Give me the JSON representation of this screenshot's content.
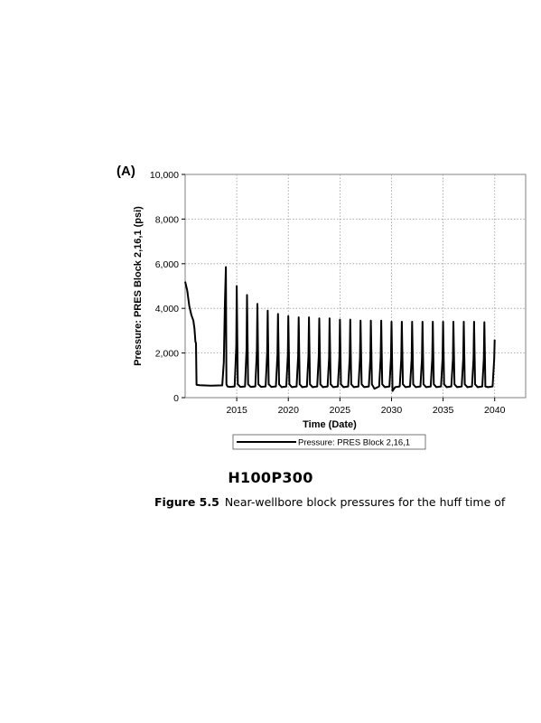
{
  "panel_label": "(A)",
  "subtitle": "H100P300",
  "caption": {
    "label": "Figure 5.5",
    "text": "Near-wellbore block pressures for the huff time of"
  },
  "chart_data": {
    "type": "line",
    "title": "",
    "xlabel": "Time (Date)",
    "ylabel": "Pressure: PRES Block 2,16,1 (psi)",
    "xlim": [
      2010.0,
      2043.0
    ],
    "ylim": [
      0,
      10000
    ],
    "x_ticks": [
      2015,
      2020,
      2025,
      2030,
      2035,
      2040
    ],
    "x_tick_labels": [
      "2015",
      "2020",
      "2025",
      "2030",
      "2035",
      "2040"
    ],
    "y_ticks": [
      0,
      2000,
      4000,
      6000,
      8000,
      10000
    ],
    "y_tick_labels": [
      "0",
      "2,000",
      "4,000",
      "6,000",
      "8,000",
      "10,000"
    ],
    "grid": true,
    "legend_position": "bottom",
    "series": [
      {
        "name": "Pressure: PRES Block 2,16,1",
        "color": "#000000",
        "x": [
          2010.0,
          2010.2,
          2010.4,
          2010.6,
          2010.8,
          2010.9,
          2011.0,
          2011.05,
          2011.1,
          2011.4,
          2012.5,
          2013.6,
          2013.75,
          2013.85,
          2013.95,
          2014.0,
          2014.1,
          2014.35,
          2014.8,
          2014.95,
          2015.0,
          2015.1,
          2015.35,
          2015.8,
          2015.95,
          2016.0,
          2016.1,
          2016.35,
          2016.8,
          2016.95,
          2017.0,
          2017.1,
          2017.35,
          2017.8,
          2017.95,
          2018.0,
          2018.1,
          2018.35,
          2018.8,
          2018.95,
          2019.0,
          2019.1,
          2019.35,
          2019.8,
          2019.95,
          2020.0,
          2020.1,
          2020.35,
          2020.8,
          2020.95,
          2021.0,
          2021.1,
          2021.35,
          2021.8,
          2021.95,
          2022.0,
          2022.1,
          2022.35,
          2022.8,
          2022.95,
          2023.0,
          2023.1,
          2023.35,
          2023.8,
          2023.95,
          2024.0,
          2024.1,
          2024.35,
          2024.8,
          2024.95,
          2025.0,
          2025.1,
          2025.35,
          2025.8,
          2025.95,
          2026.0,
          2026.1,
          2026.35,
          2026.8,
          2026.95,
          2027.0,
          2027.1,
          2027.35,
          2027.8,
          2027.95,
          2028.0,
          2028.1,
          2028.35,
          2028.8,
          2028.95,
          2029.0,
          2029.1,
          2029.35,
          2029.8,
          2029.95,
          2030.0,
          2030.1,
          2030.35,
          2030.8,
          2030.95,
          2031.0,
          2031.1,
          2031.35,
          2031.8,
          2031.95,
          2032.0,
          2032.1,
          2032.35,
          2032.8,
          2032.95,
          2033.0,
          2033.1,
          2033.35,
          2033.8,
          2033.95,
          2034.0,
          2034.1,
          2034.35,
          2034.8,
          2034.95,
          2035.0,
          2035.1,
          2035.35,
          2035.8,
          2035.95,
          2036.0,
          2036.1,
          2036.35,
          2036.8,
          2036.95,
          2037.0,
          2037.1,
          2037.35,
          2037.8,
          2037.95,
          2038.0,
          2038.1,
          2038.35,
          2038.8,
          2038.95,
          2039.0,
          2039.1,
          2039.35,
          2039.8,
          2039.95,
          2040.0
        ],
        "y": [
          5200,
          4800,
          4100,
          3700,
          3450,
          3100,
          2500,
          2450,
          580,
          560,
          540,
          550,
          1600,
          4200,
          5850,
          600,
          500,
          480,
          500,
          2300,
          5000,
          600,
          480,
          500,
          2200,
          4600,
          600,
          480,
          500,
          2100,
          4200,
          600,
          480,
          500,
          2000,
          3900,
          600,
          480,
          500,
          1900,
          3750,
          600,
          470,
          500,
          1900,
          3650,
          600,
          470,
          500,
          1850,
          3600,
          600,
          470,
          500,
          1850,
          3600,
          600,
          470,
          500,
          1850,
          3550,
          600,
          470,
          500,
          1800,
          3550,
          600,
          470,
          500,
          1800,
          3500,
          600,
          470,
          500,
          1800,
          3500,
          600,
          470,
          500,
          1800,
          3450,
          600,
          470,
          500,
          1800,
          3450,
          600,
          400,
          500,
          1800,
          3450,
          600,
          470,
          500,
          1800,
          3400,
          300,
          470,
          500,
          1750,
          3400,
          600,
          470,
          500,
          1750,
          3400,
          600,
          470,
          500,
          1750,
          3400,
          600,
          470,
          500,
          1750,
          3400,
          600,
          470,
          500,
          1750,
          3400,
          600,
          470,
          500,
          1750,
          3400,
          600,
          470,
          500,
          1750,
          3400,
          600,
          470,
          500,
          1750,
          3400,
          600,
          470,
          500,
          1750,
          3380,
          500,
          470,
          500,
          1750,
          2600
        ]
      }
    ]
  }
}
